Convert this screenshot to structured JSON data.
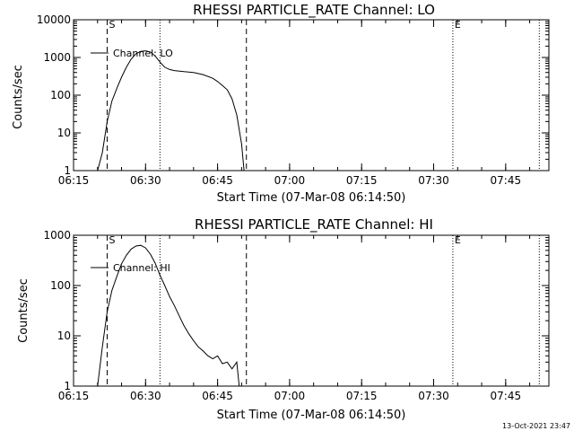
{
  "footer_date": "13-Oct-2021 23:47",
  "chart_data": [
    {
      "type": "line",
      "title": "RHESSI PARTICLE_RATE Channel: LO",
      "xlabel": "Start Time (07-Mar-08 06:14:50)",
      "ylabel": "Counts/sec",
      "yscale": "log",
      "ylim": [
        1,
        10000
      ],
      "xlim": [
        "06:15",
        "07:54"
      ],
      "x_ticks": [
        "06:15",
        "06:30",
        "06:45",
        "07:00",
        "07:15",
        "07:30",
        "07:45"
      ],
      "y_ticks": [
        "1",
        "10",
        "100",
        "1000",
        "10000"
      ],
      "legend": "Channel: LO",
      "markers": [
        {
          "label": "S",
          "time": "06:22",
          "style": "dashed"
        },
        {
          "label": "",
          "time": "06:51",
          "style": "dashed"
        },
        {
          "label": "",
          "time": "06:33",
          "style": "dotted"
        },
        {
          "label": "E",
          "time": "07:34",
          "style": "dotted"
        },
        {
          "label": "",
          "time": "07:52",
          "style": "dotted"
        }
      ],
      "series": [
        {
          "name": "Channel: LO",
          "x": [
            "06:20",
            "06:21",
            "06:22",
            "06:23",
            "06:24",
            "06:25",
            "06:26",
            "06:27",
            "06:28",
            "06:29",
            "06:30",
            "06:31",
            "06:32",
            "06:33",
            "06:34",
            "06:35",
            "06:36",
            "06:38",
            "06:40",
            "06:42",
            "06:44",
            "06:45",
            "06:46",
            "06:47",
            "06:48",
            "06:49",
            "06:50",
            "06:50:30"
          ],
          "y": [
            1,
            3,
            20,
            70,
            150,
            300,
            550,
            900,
            1250,
            1450,
            1500,
            1400,
            1100,
            750,
            550,
            480,
            450,
            420,
            400,
            350,
            280,
            230,
            180,
            140,
            80,
            30,
            5,
            1
          ]
        }
      ]
    },
    {
      "type": "line",
      "title": "RHESSI PARTICLE_RATE Channel: HI",
      "xlabel": "Start Time (07-Mar-08 06:14:50)",
      "ylabel": "Counts/sec",
      "yscale": "log",
      "ylim": [
        1,
        1000
      ],
      "xlim": [
        "06:15",
        "07:54"
      ],
      "x_ticks": [
        "06:15",
        "06:30",
        "06:45",
        "07:00",
        "07:15",
        "07:30",
        "07:45"
      ],
      "y_ticks": [
        "1",
        "10",
        "100",
        "1000"
      ],
      "legend": "Channel: HI",
      "markers": [
        {
          "label": "S",
          "time": "06:22",
          "style": "dashed"
        },
        {
          "label": "",
          "time": "06:51",
          "style": "dashed"
        },
        {
          "label": "",
          "time": "06:33",
          "style": "dotted"
        },
        {
          "label": "E",
          "time": "07:34",
          "style": "dotted"
        },
        {
          "label": "",
          "time": "07:52",
          "style": "dotted"
        }
      ],
      "series": [
        {
          "name": "Channel: HI",
          "x": [
            "06:20",
            "06:21",
            "06:22",
            "06:23",
            "06:24",
            "06:25",
            "06:26",
            "06:27",
            "06:28",
            "06:29",
            "06:30",
            "06:31",
            "06:32",
            "06:33",
            "06:34",
            "06:35",
            "06:36",
            "06:37",
            "06:38",
            "06:39",
            "06:40",
            "06:41",
            "06:42",
            "06:43",
            "06:44",
            "06:45",
            "06:46",
            "06:47",
            "06:48",
            "06:49",
            "06:49:30"
          ],
          "y": [
            1,
            6,
            30,
            80,
            150,
            270,
            400,
            530,
            610,
            630,
            560,
            420,
            280,
            160,
            100,
            60,
            40,
            25,
            16,
            11,
            8,
            6,
            5,
            4,
            3.5,
            4,
            2.8,
            3,
            2.2,
            3,
            1
          ]
        }
      ]
    }
  ]
}
